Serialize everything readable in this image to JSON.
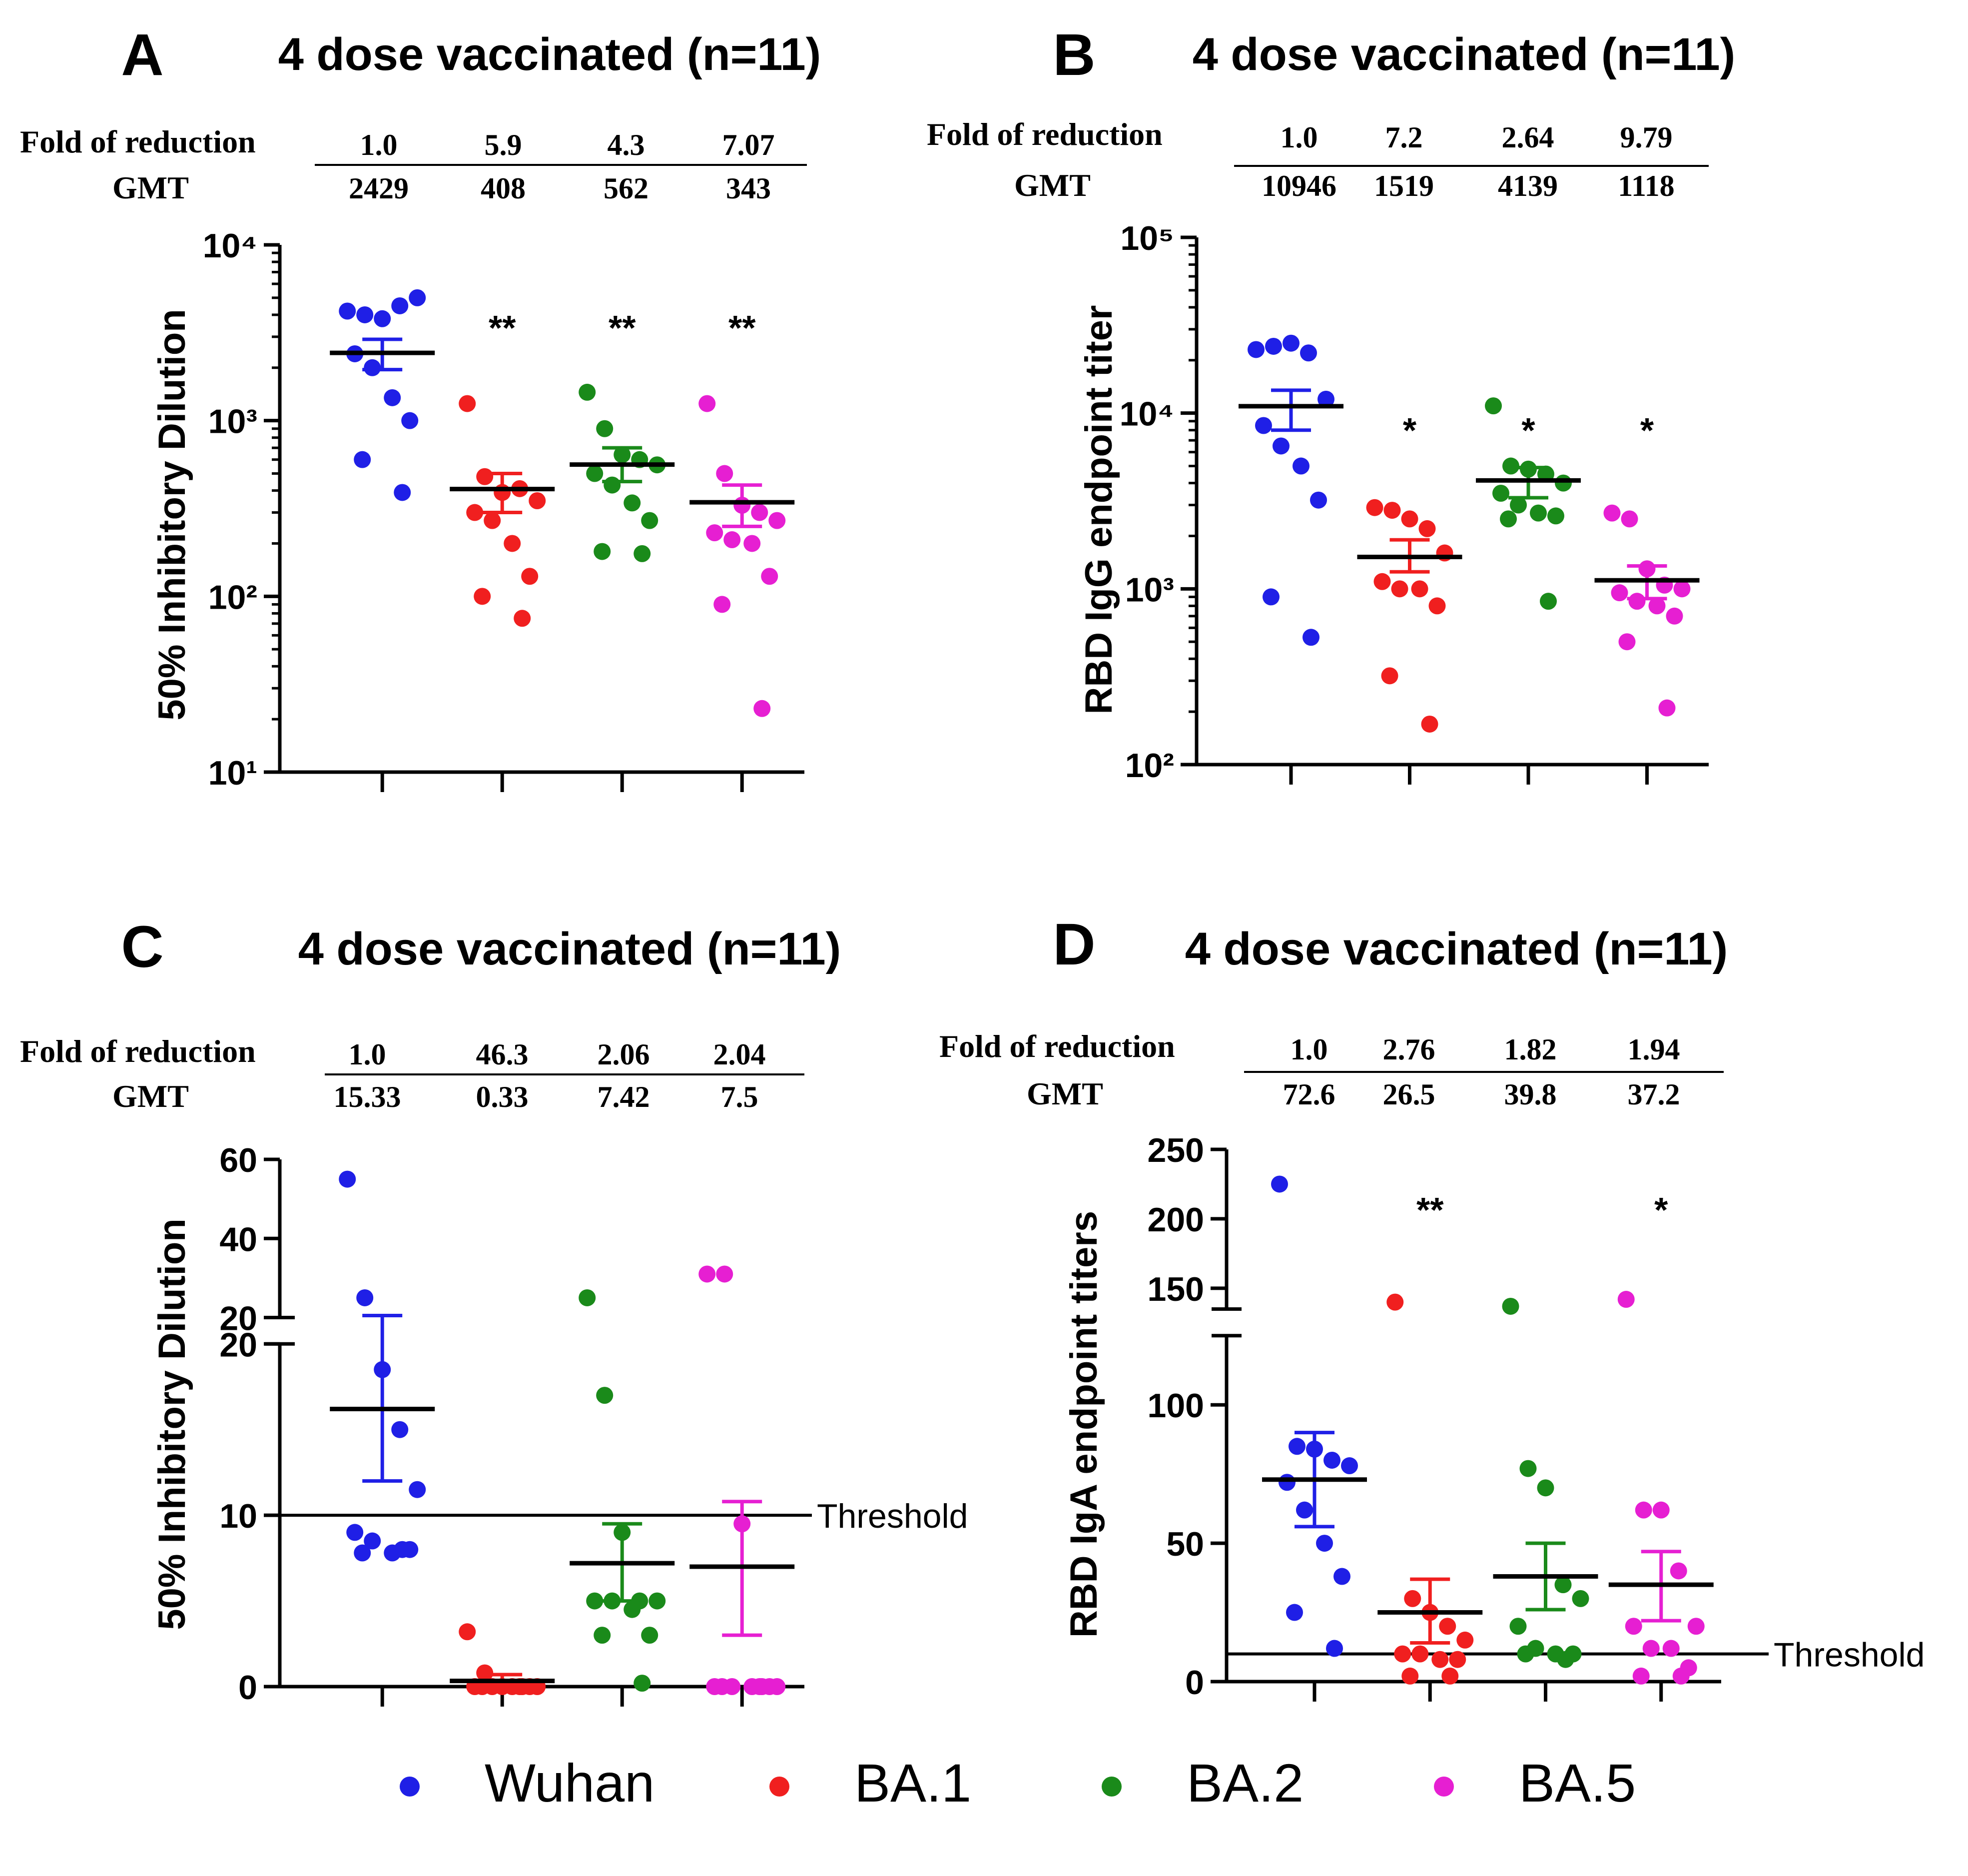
{
  "colors": {
    "Wuhan": "#1f1fe6",
    "BA.1": "#f01f1f",
    "BA.2": "#1a8a1a",
    "BA.5": "#e61fd2",
    "axis": "#000000"
  },
  "legend": {
    "items": [
      {
        "label": "Wuhan",
        "color": "#1f1fe6"
      },
      {
        "label": "BA.1",
        "color": "#f01f1f"
      },
      {
        "label": "BA.2",
        "color": "#1a8a1a"
      },
      {
        "label": "BA.5",
        "color": "#e61fd2"
      }
    ]
  },
  "chart_data": [
    {
      "panel": "A",
      "title": "4 dose vaccinated  (n=11)",
      "type": "scatter",
      "ylabel": "50% Inhibitory Dilution",
      "yscale": "log",
      "ylim": [
        10,
        10000
      ],
      "ytick_labels": [
        "10¹",
        "10²",
        "10³",
        "10⁴"
      ],
      "categories": [
        "Wuhan",
        "BA.1",
        "BA.2",
        "BA.5"
      ],
      "fold_label": "Fold of reduction",
      "gmt_label": "GMT",
      "fold": [
        "1.0",
        "5.9",
        "4.3",
        "7.07"
      ],
      "gmt": [
        "2429",
        "408",
        "562",
        "343"
      ],
      "significance": [
        "",
        "**",
        "**",
        "**"
      ],
      "series": [
        {
          "name": "Wuhan",
          "mean": 2429,
          "err_low": 1950,
          "err_high": 2900,
          "values": [
            4200,
            4000,
            3800,
            4500,
            5000,
            2400,
            2000,
            1350,
            1000,
            600,
            390
          ]
        },
        {
          "name": "BA.1",
          "mean": 408,
          "err_low": 300,
          "err_high": 500,
          "values": [
            1250,
            480,
            390,
            410,
            350,
            300,
            270,
            200,
            130,
            100,
            75
          ]
        },
        {
          "name": "BA.2",
          "mean": 562,
          "err_low": 450,
          "err_high": 700,
          "values": [
            1450,
            900,
            640,
            600,
            560,
            500,
            430,
            340,
            270,
            180,
            175
          ]
        },
        {
          "name": "BA.5",
          "mean": 343,
          "err_low": 250,
          "err_high": 430,
          "values": [
            1250,
            500,
            330,
            300,
            270,
            230,
            210,
            200,
            130,
            90,
            23
          ]
        }
      ]
    },
    {
      "panel": "B",
      "title": "4 dose vaccinated  (n=11)",
      "type": "scatter",
      "ylabel": "RBD IgG endpoint titer",
      "yscale": "log",
      "ylim": [
        100,
        100000
      ],
      "ytick_labels": [
        "10²",
        "10³",
        "10⁴",
        "10⁵"
      ],
      "categories": [
        "Wuhan",
        "BA.1",
        "BA.2",
        "BA.5"
      ],
      "fold_label": "Fold of reduction",
      "gmt_label": "GMT",
      "fold": [
        "1.0",
        "7.2",
        "2.64",
        "9.79"
      ],
      "gmt": [
        "10946",
        "1519",
        "4139",
        "1118"
      ],
      "significance": [
        "",
        "*",
        "*",
        "*"
      ],
      "series": [
        {
          "name": "Wuhan",
          "mean": 10946,
          "err_low": 8000,
          "err_high": 13500,
          "values": [
            23000,
            24000,
            25000,
            22000,
            12000,
            8500,
            6500,
            5000,
            3200,
            900,
            530
          ]
        },
        {
          "name": "BA.1",
          "mean": 1519,
          "err_low": 1250,
          "err_high": 1900,
          "values": [
            2900,
            2800,
            2500,
            2200,
            1600,
            1100,
            1000,
            1000,
            800,
            320,
            170
          ]
        },
        {
          "name": "BA.2",
          "mean": 4139,
          "err_low": 3300,
          "err_high": 4900,
          "values": [
            11000,
            5000,
            4800,
            4500,
            4000,
            3500,
            3000,
            2700,
            2600,
            2500,
            850
          ]
        },
        {
          "name": "BA.5",
          "mean": 1118,
          "err_low": 880,
          "err_high": 1350,
          "values": [
            2700,
            2500,
            1300,
            1050,
            1000,
            950,
            850,
            800,
            700,
            500,
            210
          ]
        }
      ]
    },
    {
      "panel": "C",
      "title": "4 dose vaccinated  (n=11)",
      "type": "scatter",
      "ylabel": "50% Inhibitory Dilution",
      "yscale": "broken-linear",
      "ylim": [
        0,
        60
      ],
      "ytick_labels_lower": [
        "0",
        "10",
        "20"
      ],
      "ytick_labels_upper": [
        "20",
        "40",
        "60"
      ],
      "threshold": 10,
      "threshold_label": "Threshold",
      "categories": [
        "Wuhan",
        "BA.1",
        "BA.2",
        "BA.5"
      ],
      "fold_label": "Fold of reduction",
      "gmt_label": "GMT",
      "fold": [
        "1.0",
        "46.3",
        "2.06",
        "2.04"
      ],
      "gmt": [
        "15.33",
        "0.33",
        "7.42",
        "7.5"
      ],
      "significance": [
        "",
        "",
        "",
        ""
      ],
      "series": [
        {
          "name": "Wuhan",
          "mean": 16.2,
          "err_low": 12.0,
          "err_high": 20.5,
          "values": [
            55,
            25,
            18.5,
            15.0,
            11.5,
            9.0,
            8.5,
            7.8,
            8.0,
            7.8,
            8.0
          ]
        },
        {
          "name": "BA.1",
          "mean": 0.33,
          "err_low": 0.0,
          "err_high": 0.7,
          "values": [
            3.2,
            0.8,
            0,
            0,
            0,
            0,
            0,
            0,
            0,
            0,
            0
          ]
        },
        {
          "name": "BA.2",
          "mean": 7.2,
          "err_low": 5.0,
          "err_high": 9.5,
          "values": [
            25,
            17,
            9.0,
            5.0,
            5.0,
            5.0,
            5.0,
            4.5,
            3.0,
            3.0,
            0.2
          ]
        },
        {
          "name": "BA.5",
          "mean": 7.0,
          "err_low": 3.0,
          "err_high": 10.8,
          "values": [
            31,
            31,
            9.5,
            0,
            0,
            0,
            0,
            0,
            0,
            0,
            0
          ]
        }
      ]
    },
    {
      "panel": "D",
      "title": "4 dose vaccinated  (n=11)",
      "type": "scatter",
      "ylabel": "RBD IgA endpoint titers",
      "yscale": "broken-linear",
      "ylim": [
        0,
        250
      ],
      "ytick_labels_lower": [
        "0",
        "50",
        "100"
      ],
      "ytick_labels_upper": [
        "150",
        "200",
        "250"
      ],
      "threshold": 10,
      "threshold_label": "Threshold",
      "categories": [
        "Wuhan",
        "BA.1",
        "BA.2",
        "BA.5"
      ],
      "fold_label": "Fold of reduction",
      "gmt_label": "GMT",
      "fold": [
        "1.0",
        "2.76",
        "1.82",
        "1.94"
      ],
      "gmt": [
        "72.6",
        "26.5",
        "39.8",
        "37.2"
      ],
      "significance": [
        "",
        "**",
        "",
        "*"
      ],
      "series": [
        {
          "name": "Wuhan",
          "mean": 73,
          "err_low": 56,
          "err_high": 90,
          "values": [
            225,
            85,
            84,
            80,
            78,
            72,
            62,
            50,
            38,
            25,
            12
          ]
        },
        {
          "name": "BA.1",
          "mean": 25,
          "err_low": 14,
          "err_high": 37,
          "values": [
            140,
            30,
            25,
            20,
            15,
            10,
            10,
            8,
            8,
            2,
            2
          ]
        },
        {
          "name": "BA.2",
          "mean": 38,
          "err_low": 26,
          "err_high": 50,
          "values": [
            137,
            77,
            70,
            35,
            30,
            20,
            12,
            10,
            10,
            10,
            8
          ]
        },
        {
          "name": "BA.5",
          "mean": 35,
          "err_low": 22,
          "err_high": 47,
          "values": [
            142,
            62,
            62,
            40,
            20,
            20,
            12,
            12,
            5,
            2,
            2
          ]
        }
      ]
    }
  ]
}
